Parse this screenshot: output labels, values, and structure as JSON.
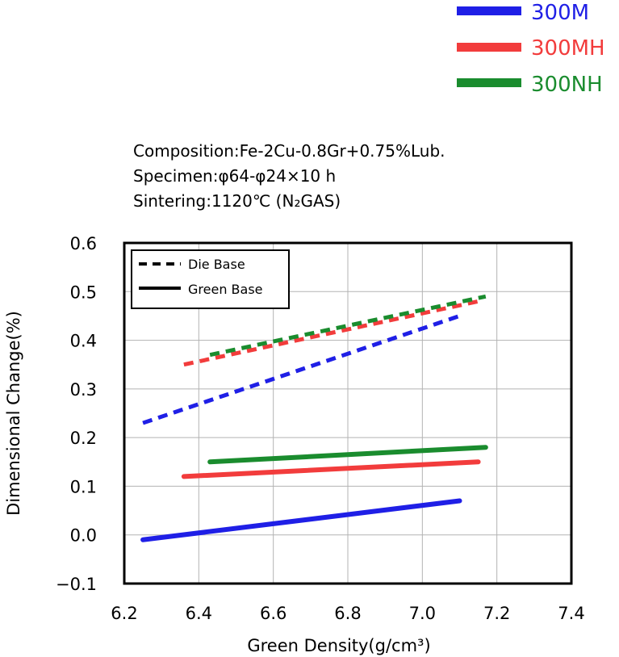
{
  "chart_data": {
    "type": "line",
    "xlabel": "Green Density(g/cm³)",
    "ylabel": "Dimensional Change(%)",
    "xlim": [
      6.2,
      7.4
    ],
    "ylim": [
      -0.1,
      0.6
    ],
    "x_ticks": [
      "6.2",
      "6.4",
      "6.6",
      "6.8",
      "7.0",
      "7.2",
      "7.4"
    ],
    "y_ticks": [
      "0.6",
      "0.5",
      "0.4",
      "0.3",
      "0.2",
      "0.1",
      "0.0",
      "−0.1"
    ],
    "grid": true,
    "legend_placement": "top-right",
    "notes": [
      "Composition:Fe-2Cu-0.8Gr+0.75%Lub.",
      "Specimen:φ64-φ24×10 h",
      "Sintering:1120℃ (N₂GAS)"
    ],
    "line_styles": [
      {
        "label": "Die Base",
        "dash": true
      },
      {
        "label": "Green Base",
        "dash": false
      }
    ],
    "series": [
      {
        "name": "300M",
        "color": "#1f1fe6",
        "style": "Die Base",
        "x": [
          6.25,
          7.1
        ],
        "y": [
          0.23,
          0.45
        ]
      },
      {
        "name": "300MH",
        "color": "#f23c3c",
        "style": "Die Base",
        "x": [
          6.36,
          7.15
        ],
        "y": [
          0.35,
          0.48
        ]
      },
      {
        "name": "300NH",
        "color": "#1a8c2e",
        "style": "Die Base",
        "x": [
          6.43,
          7.17
        ],
        "y": [
          0.37,
          0.49
        ]
      },
      {
        "name": "300M",
        "color": "#1f1fe6",
        "style": "Green Base",
        "x": [
          6.25,
          7.1
        ],
        "y": [
          -0.01,
          0.07
        ]
      },
      {
        "name": "300MH",
        "color": "#f23c3c",
        "style": "Green Base",
        "x": [
          6.36,
          7.15
        ],
        "y": [
          0.12,
          0.15
        ]
      },
      {
        "name": "300NH",
        "color": "#1a8c2e",
        "style": "Green Base",
        "x": [
          6.43,
          7.17
        ],
        "y": [
          0.15,
          0.18
        ]
      }
    ],
    "material_legend": [
      {
        "label": "300M",
        "color": "#1f1fe6"
      },
      {
        "label": "300MH",
        "color": "#f23c3c"
      },
      {
        "label": "300NH",
        "color": "#1a8c2e"
      }
    ]
  }
}
